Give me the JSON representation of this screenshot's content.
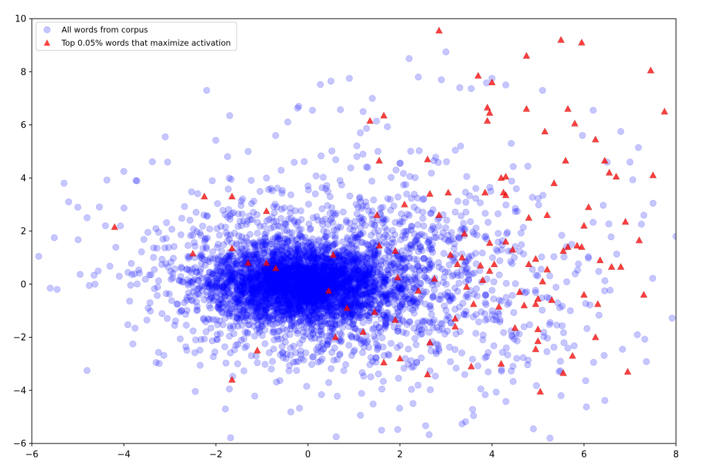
{
  "chart_data": {
    "type": "scatter",
    "title": "",
    "xlabel": "",
    "ylabel": "",
    "xlim": [
      -6,
      8
    ],
    "ylim": [
      -6,
      10
    ],
    "x_ticks": [
      -6,
      -4,
      -2,
      0,
      2,
      4,
      6,
      8
    ],
    "y_ticks": [
      -6,
      -4,
      -2,
      0,
      2,
      4,
      6,
      8,
      10
    ],
    "grid": false,
    "legend_position": "top-left",
    "series": [
      {
        "name": "All words from corpus",
        "marker": "circle",
        "color": "#0000ff",
        "alpha": 0.22,
        "cluster_center": [
          -0.2,
          0.0
        ],
        "point_count": 5000,
        "points": [
          [
            -5.85,
            1.05
          ],
          [
            -5.6,
            -0.15
          ],
          [
            -5.45,
            -0.2
          ],
          [
            -5.3,
            3.8
          ],
          [
            -5.2,
            3.1
          ],
          [
            -5.0,
            2.9
          ],
          [
            -4.8,
            2.5
          ],
          [
            -4.8,
            -3.25
          ],
          [
            -4.75,
            -0.05
          ],
          [
            -4.4,
            2.2
          ],
          [
            -4.1,
            0.3
          ],
          [
            -4.0,
            4.25
          ],
          [
            -3.5,
            -1.35
          ],
          [
            -3.3,
            -2.95
          ],
          [
            -3.1,
            5.55
          ],
          [
            -3.05,
            4.6
          ],
          [
            -2.2,
            7.3
          ],
          [
            -1.7,
            6.35
          ],
          [
            -1.3,
            5.0
          ],
          [
            -0.7,
            5.6
          ],
          [
            -0.2,
            6.7
          ],
          [
            0.1,
            6.55
          ],
          [
            0.5,
            7.65
          ],
          [
            0.9,
            7.75
          ],
          [
            1.2,
            6.5
          ],
          [
            1.4,
            7.0
          ],
          [
            1.6,
            -5.5
          ],
          [
            2.2,
            8.5
          ],
          [
            2.4,
            7.8
          ],
          [
            2.9,
            7.7
          ],
          [
            3.0,
            8.75
          ],
          [
            3.3,
            7.4
          ],
          [
            3.6,
            -4.95
          ],
          [
            4.0,
            7.75
          ],
          [
            4.3,
            7.5
          ],
          [
            4.9,
            -5.45
          ],
          [
            5.1,
            7.3
          ],
          [
            5.5,
            -4.2
          ],
          [
            6.2,
            6.55
          ],
          [
            6.8,
            5.75
          ],
          [
            7.0,
            4.6
          ],
          [
            7.3,
            2.6
          ],
          [
            7.5,
            3.05
          ],
          [
            8.0,
            1.8
          ]
        ]
      },
      {
        "name": "Top 0.05% words that maximize activation",
        "marker": "triangle",
        "color": "#ff0000",
        "alpha": 0.75,
        "points": [
          [
            -4.2,
            2.15
          ],
          [
            -2.5,
            1.15
          ],
          [
            -2.25,
            3.3
          ],
          [
            -1.65,
            3.3
          ],
          [
            -1.65,
            1.35
          ],
          [
            -1.65,
            -3.6
          ],
          [
            -1.3,
            0.8
          ],
          [
            -1.1,
            -2.5
          ],
          [
            -0.9,
            2.75
          ],
          [
            -0.9,
            0.8
          ],
          [
            -0.7,
            0.6
          ],
          [
            0.45,
            -0.25
          ],
          [
            0.55,
            1.1
          ],
          [
            0.6,
            -2.0
          ],
          [
            0.85,
            -0.9
          ],
          [
            1.2,
            -1.8
          ],
          [
            1.35,
            6.15
          ],
          [
            1.45,
            -1.05
          ],
          [
            1.5,
            2.6
          ],
          [
            1.55,
            4.65
          ],
          [
            1.55,
            1.45
          ],
          [
            1.65,
            6.35
          ],
          [
            1.65,
            -2.95
          ],
          [
            1.9,
            -1.35
          ],
          [
            1.9,
            1.25
          ],
          [
            1.95,
            0.25
          ],
          [
            2.0,
            -2.8
          ],
          [
            2.1,
            3.0
          ],
          [
            2.4,
            -0.25
          ],
          [
            2.6,
            -3.4
          ],
          [
            2.6,
            4.7
          ],
          [
            2.65,
            3.4
          ],
          [
            2.65,
            -2.2
          ],
          [
            2.75,
            0.2
          ],
          [
            2.85,
            9.55
          ],
          [
            2.85,
            2.6
          ],
          [
            3.05,
            3.45
          ],
          [
            3.1,
            1.1
          ],
          [
            3.2,
            -1.3
          ],
          [
            3.2,
            -1.6
          ],
          [
            3.25,
            0.75
          ],
          [
            3.35,
            1.0
          ],
          [
            3.4,
            1.9
          ],
          [
            3.45,
            -0.1
          ],
          [
            3.55,
            -3.1
          ],
          [
            3.6,
            -0.75
          ],
          [
            3.7,
            7.85
          ],
          [
            3.75,
            0.7
          ],
          [
            3.8,
            0.15
          ],
          [
            3.85,
            3.45
          ],
          [
            3.9,
            6.65
          ],
          [
            3.9,
            6.15
          ],
          [
            3.95,
            6.45
          ],
          [
            3.95,
            1.55
          ],
          [
            3.95,
            0.5
          ],
          [
            4.0,
            7.6
          ],
          [
            4.05,
            0.75
          ],
          [
            4.15,
            -0.85
          ],
          [
            4.2,
            -3.0
          ],
          [
            4.2,
            4.0
          ],
          [
            4.25,
            3.45
          ],
          [
            4.3,
            1.6
          ],
          [
            4.3,
            4.05
          ],
          [
            4.3,
            3.35
          ],
          [
            4.45,
            1.3
          ],
          [
            4.5,
            -1.65
          ],
          [
            4.6,
            -0.3
          ],
          [
            4.7,
            -0.8
          ],
          [
            4.75,
            6.6
          ],
          [
            4.75,
            8.6
          ],
          [
            4.8,
            2.5
          ],
          [
            4.8,
            0.75
          ],
          [
            4.95,
            -2.45
          ],
          [
            4.95,
            -0.75
          ],
          [
            4.95,
            0.95
          ],
          [
            5.0,
            -2.15
          ],
          [
            5.0,
            -0.55
          ],
          [
            5.0,
            -1.7
          ],
          [
            5.05,
            -4.05
          ],
          [
            5.1,
            0.1
          ],
          [
            5.15,
            5.75
          ],
          [
            5.2,
            2.6
          ],
          [
            5.2,
            0.55
          ],
          [
            5.3,
            -0.6
          ],
          [
            5.35,
            3.8
          ],
          [
            5.5,
            9.2
          ],
          [
            5.55,
            1.25
          ],
          [
            5.55,
            -3.35
          ],
          [
            5.6,
            4.65
          ],
          [
            5.65,
            6.6
          ],
          [
            5.65,
            1.4
          ],
          [
            5.75,
            -2.7
          ],
          [
            5.8,
            6.05
          ],
          [
            5.85,
            1.45
          ],
          [
            5.95,
            1.4
          ],
          [
            5.95,
            9.1
          ],
          [
            6.0,
            2.2
          ],
          [
            6.0,
            -0.4
          ],
          [
            6.1,
            2.9
          ],
          [
            6.25,
            5.45
          ],
          [
            6.25,
            -2.0
          ],
          [
            6.3,
            -0.75
          ],
          [
            6.35,
            0.9
          ],
          [
            6.45,
            4.65
          ],
          [
            6.55,
            4.2
          ],
          [
            6.6,
            0.65
          ],
          [
            6.7,
            4.05
          ],
          [
            6.8,
            0.65
          ],
          [
            6.9,
            2.35
          ],
          [
            6.95,
            -3.3
          ],
          [
            7.2,
            1.65
          ],
          [
            7.3,
            -0.4
          ],
          [
            7.45,
            8.05
          ],
          [
            7.5,
            4.1
          ],
          [
            7.75,
            6.5
          ]
        ]
      }
    ]
  }
}
